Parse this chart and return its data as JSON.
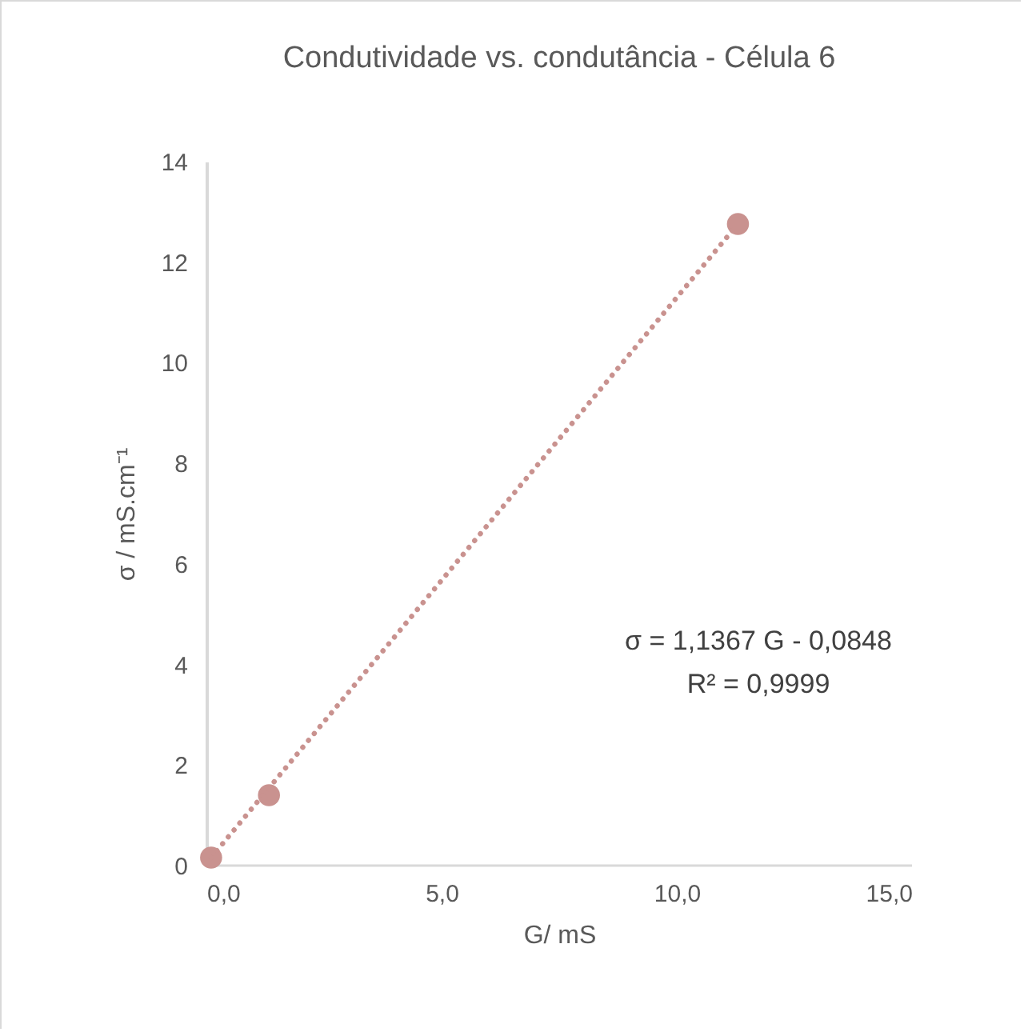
{
  "chart_data": {
    "type": "scatter",
    "title": "Condutividade vs. condutância - Célula 6",
    "xlabel": "G/ mS",
    "ylabel": "σ / mS.cm⁻¹",
    "series": [
      {
        "color": "#c9928f",
        "x": [
          0.1,
          1.33,
          11.3
        ],
        "values": [
          0.16,
          1.4,
          12.76
        ]
      },
      {
        "type": "line",
        "color": "#c9928f",
        "x": [
          0.1,
          11.3
        ],
        "values": [
          0.16,
          12.76
        ],
        "line_style": "dotted",
        "marker": "none"
      }
    ],
    "xlim": [
      0,
      15
    ],
    "xticks": [
      {
        "value": 0,
        "label": "0,0"
      },
      {
        "value": 5,
        "label": "5,0"
      },
      {
        "value": 10,
        "label": "10,0"
      },
      {
        "value": 15,
        "label": "15,0"
      }
    ],
    "ylim": [
      0,
      14
    ],
    "yticks": [
      0,
      2,
      4,
      6,
      8,
      10,
      12,
      14
    ],
    "annotations": [
      "σ = 1,1367 G - 0,0848",
      "R² = 0,9999"
    ],
    "marker": "circle",
    "grid": false
  }
}
